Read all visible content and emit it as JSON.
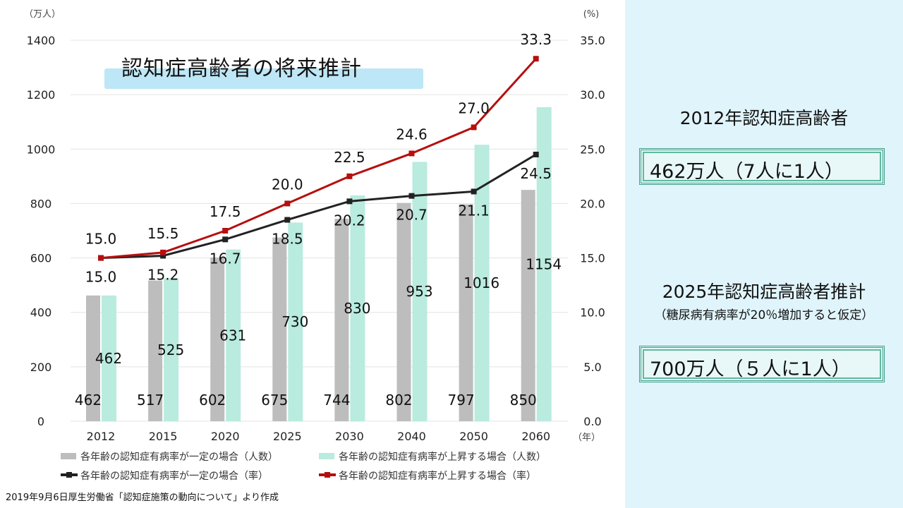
{
  "chart_data": {
    "type": "bar+line",
    "title": "認知症高齢者の将来推計",
    "categories": [
      "2012",
      "2015",
      "2020",
      "2025",
      "2030",
      "2040",
      "2050",
      "2060"
    ],
    "x_unit": "（年）",
    "y_left": {
      "unit": "（万人）",
      "range": [
        0,
        1400
      ],
      "ticks": [
        "0",
        "200",
        "400",
        "600",
        "800",
        "1000",
        "1200",
        "1400"
      ]
    },
    "y_right": {
      "unit": "(%)",
      "range": [
        0,
        35
      ],
      "ticks": [
        "0.0",
        "5.0",
        "10.0",
        "15.0",
        "20.0",
        "25.0",
        "30.0",
        "35.0"
      ]
    },
    "grid": true,
    "legend_position": "bottom",
    "series": [
      {
        "name": "各年齢の認知症有病率が一定の場合（人数）",
        "kind": "bar",
        "axis": "left",
        "color": "#bdbdbd",
        "values": [
          462,
          517,
          602,
          675,
          744,
          802,
          797,
          850
        ]
      },
      {
        "name": "各年齢の認知症有病率が上昇する場合（人数）",
        "kind": "bar",
        "axis": "left",
        "color": "#b9ebdf",
        "values": [
          462,
          525,
          631,
          730,
          830,
          953,
          1016,
          1154
        ]
      },
      {
        "name": "各年齢の認知症有病率が一定の場合（率）",
        "kind": "line",
        "axis": "right",
        "color": "#222222",
        "values": [
          15.0,
          15.2,
          16.7,
          18.5,
          20.2,
          20.7,
          21.1,
          24.5
        ]
      },
      {
        "name": "各年齢の認知症有病率が上昇する場合（率）",
        "kind": "line",
        "axis": "right",
        "color": "#b50f0f",
        "values": [
          15.0,
          15.5,
          17.5,
          20.0,
          22.5,
          24.6,
          27.0,
          33.3
        ]
      }
    ]
  },
  "source": "2019年9月6日厚生労働省「認知症施策の動向について」より作成",
  "side": {
    "h1": "2012年認知症高齢者",
    "box1": "462万人（7人に1人）",
    "h2": "2025年認知症高齢者推計",
    "sub2": "（糖尿病有病率が20％増加すると仮定）",
    "box2": "700万人（５人に1人）"
  }
}
